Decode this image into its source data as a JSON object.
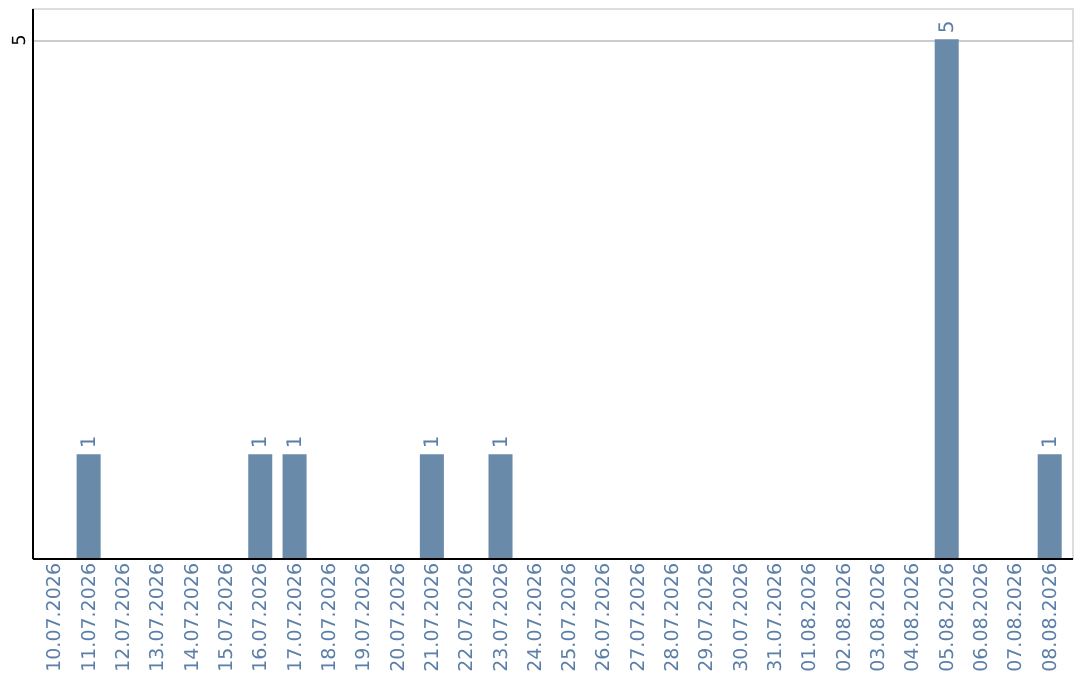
{
  "chart_data": {
    "type": "bar",
    "categories": [
      "10.07.2026",
      "11.07.2026",
      "12.07.2026",
      "13.07.2026",
      "14.07.2026",
      "15.07.2026",
      "16.07.2026",
      "17.07.2026",
      "18.07.2026",
      "19.07.2026",
      "20.07.2026",
      "21.07.2026",
      "22.07.2026",
      "23.07.2026",
      "24.07.2026",
      "25.07.2026",
      "26.07.2026",
      "27.07.2026",
      "28.07.2026",
      "29.07.2026",
      "30.07.2026",
      "31.07.2026",
      "01.08.2026",
      "02.08.2026",
      "03.08.2026",
      "04.08.2026",
      "05.08.2026",
      "06.08.2026",
      "07.08.2026",
      "08.08.2026"
    ],
    "values": [
      0,
      1,
      0,
      0,
      0,
      0,
      1,
      1,
      0,
      0,
      0,
      1,
      0,
      1,
      0,
      0,
      0,
      0,
      0,
      0,
      0,
      0,
      0,
      0,
      0,
      0,
      5,
      0,
      0,
      1
    ],
    "value_labels": [
      null,
      "1",
      null,
      null,
      null,
      null,
      "1",
      "1",
      null,
      null,
      null,
      "1",
      null,
      "1",
      null,
      null,
      null,
      null,
      null,
      null,
      null,
      null,
      null,
      null,
      null,
      null,
      "5",
      null,
      null,
      "1"
    ],
    "color": "#6a8aaa",
    "ylim": [
      0,
      5.3
    ],
    "yticks": [
      5
    ],
    "grid": "y"
  }
}
